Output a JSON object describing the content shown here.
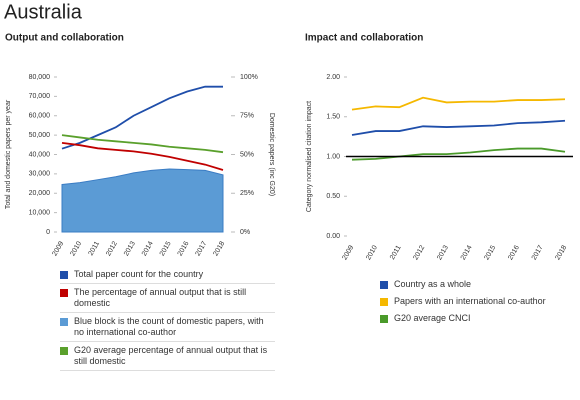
{
  "title": "Australia",
  "chart_data": [
    {
      "type": "line",
      "title": "Output and collaboration",
      "y_label": "Total and domestic papers per year",
      "y2_label": "Domestic papers (inc G20)",
      "categories": [
        "2009",
        "2010",
        "2011",
        "2012",
        "2013",
        "2014",
        "2015",
        "2016",
        "2017",
        "2018"
      ],
      "ylim": [
        0,
        80000
      ],
      "yticks": [
        0,
        {
          "value": 10000,
          "label": "10,000"
        },
        {
          "value": 20000,
          "label": "20,000"
        },
        {
          "value": 30000,
          "label": "30,000"
        },
        {
          "value": 40000,
          "label": "40,000"
        },
        {
          "value": 50000,
          "label": "50,000"
        },
        {
          "value": 60000,
          "label": "60,000"
        },
        {
          "value": 70000,
          "label": "70,000"
        },
        {
          "value": 80000,
          "label": "80,000"
        }
      ],
      "y2lim": [
        0,
        100
      ],
      "y2ticks": [
        {
          "value": 0,
          "label": "0%"
        },
        {
          "value": 25,
          "label": "25%"
        },
        {
          "value": 50,
          "label": "50%"
        },
        {
          "value": 75,
          "label": "75%"
        },
        {
          "value": 100,
          "label": "100%"
        }
      ],
      "grid": false,
      "series": [
        {
          "name": "Total paper count for the country",
          "color": "#1f4eaa",
          "values": [
            43000,
            46000,
            50000,
            54000,
            60000,
            64500,
            69000,
            72500,
            75000,
            75000
          ]
        },
        {
          "name": "The percentage of annual output that is still domestic",
          "color": "#c00000",
          "axis": "y2",
          "values": [
            57.5,
            56,
            54,
            53,
            52,
            50.5,
            48.5,
            46,
            43.5,
            40
          ]
        },
        {
          "name": "Blue block is the count of domestic papers, with no international co-author",
          "color": "#5b9bd5",
          "kind": "area",
          "values": [
            24500,
            25500,
            27000,
            28500,
            30500,
            31800,
            32500,
            32200,
            31800,
            29500
          ]
        },
        {
          "name": "G20 average percentage of annual output that is still domestic",
          "color": "#5aa02c",
          "axis": "y2",
          "values": [
            62.5,
            61,
            59.5,
            58.5,
            57.5,
            56.5,
            55,
            54,
            53,
            51.5
          ]
        }
      ]
    },
    {
      "type": "line",
      "title": "Impact and collaboration",
      "y_label": "Category normalised citation impact",
      "categories": [
        "2009",
        "2010",
        "2011",
        "2012",
        "2013",
        "2014",
        "2015",
        "2016",
        "2017",
        "2018"
      ],
      "ylim": [
        0,
        2
      ],
      "yticks": [
        {
          "value": 0,
          "label": "0.00"
        },
        {
          "value": 0.5,
          "label": "0.50"
        },
        {
          "value": 1,
          "label": "1.00"
        },
        {
          "value": 1.5,
          "label": "1.50"
        },
        {
          "value": 2,
          "label": "2.00"
        }
      ],
      "grid": false,
      "hline": 1,
      "series": [
        {
          "name": "Country as a whole",
          "color": "#1f4eaa",
          "values": [
            1.27,
            1.32,
            1.32,
            1.38,
            1.37,
            1.38,
            1.39,
            1.42,
            1.43,
            1.45
          ]
        },
        {
          "name": "Papers with an international co-author",
          "color": "#f5b800",
          "values": [
            1.59,
            1.63,
            1.62,
            1.74,
            1.68,
            1.69,
            1.69,
            1.71,
            1.71,
            1.72
          ]
        },
        {
          "name": "G20 average CNCI",
          "color": "#4a9a2a",
          "values": [
            0.96,
            0.97,
            1.0,
            1.03,
            1.03,
            1.05,
            1.08,
            1.1,
            1.1,
            1.06
          ]
        }
      ]
    }
  ]
}
